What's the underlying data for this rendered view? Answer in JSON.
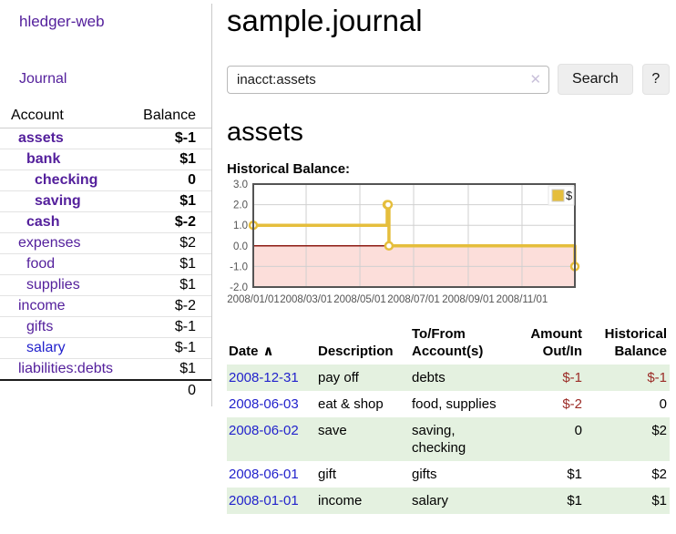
{
  "app": {
    "title": "hledger-web"
  },
  "sidebar": {
    "nav": {
      "journal": "Journal"
    },
    "accounts_table": {
      "headers": {
        "account": "Account",
        "balance": "Balance"
      },
      "rows": [
        {
          "name": "assets",
          "indent": 0,
          "bold": true,
          "balance": "$-1",
          "neg": "strong"
        },
        {
          "name": "bank",
          "indent": 1,
          "bold": true,
          "balance": "$1"
        },
        {
          "name": "checking",
          "indent": 2,
          "bold": true,
          "balance": "0"
        },
        {
          "name": "saving",
          "indent": 2,
          "bold": true,
          "balance": "$1"
        },
        {
          "name": "cash",
          "indent": 1,
          "bold": true,
          "balance": "$-2",
          "neg": "strong"
        },
        {
          "name": "expenses",
          "indent": 0,
          "bold": false,
          "balance": "$2"
        },
        {
          "name": "food",
          "indent": 1,
          "bold": false,
          "balance": "$1"
        },
        {
          "name": "supplies",
          "indent": 1,
          "bold": false,
          "balance": "$1"
        },
        {
          "name": "income",
          "indent": 0,
          "bold": false,
          "balance": "$-2",
          "neg": "light"
        },
        {
          "name": "gifts",
          "indent": 1,
          "bold": false,
          "balance": "$-1",
          "neg": "light"
        },
        {
          "name": "salary",
          "indent": 1,
          "bold": false,
          "balance": "$-1",
          "neg": "light",
          "link": "blue"
        },
        {
          "name": "liabilities:debts",
          "indent": 0,
          "bold": false,
          "balance": "$1"
        }
      ],
      "total": "0"
    }
  },
  "main": {
    "title": "sample.journal",
    "search": {
      "value": "inacct:assets",
      "clear_icon": "✕",
      "search_button": "Search",
      "help_button": "?"
    },
    "account_heading": "assets",
    "chart_label": "Historical Balance:"
  },
  "chart_data": {
    "type": "line",
    "step": true,
    "title": "Historical Balance",
    "grid": true,
    "legend_position": "top-right",
    "series": [
      {
        "name": "$",
        "color": "#e5be3c",
        "points": [
          [
            "2008-01-01",
            1
          ],
          [
            "2008-06-01",
            2
          ],
          [
            "2008-06-02",
            2
          ],
          [
            "2008-06-03",
            0
          ],
          [
            "2008-12-31",
            -1
          ]
        ]
      }
    ],
    "xlim": [
      "2008-01-01",
      "2008-12-31"
    ],
    "ylim": [
      -2,
      3
    ],
    "yticks": [
      3,
      2,
      1,
      0,
      -1,
      -2
    ],
    "xticks": [
      {
        "label": "2008/01/01",
        "date": "2008-01-01"
      },
      {
        "label": "2008/03/01",
        "date": "2008-03-01"
      },
      {
        "label": "2008/05/01",
        "date": "2008-05-01"
      },
      {
        "label": "2008/07/01",
        "date": "2008-07-01"
      },
      {
        "label": "2008/09/01",
        "date": "2008-09-01"
      },
      {
        "label": "2008/11/01",
        "date": "2008-11-01"
      }
    ],
    "negative_region_color": "#fcdeda",
    "zero_line_color": "#8c1a12",
    "border_color": "#545454",
    "gridline_color": "#d0d0d0"
  },
  "register": {
    "headers": {
      "date": "Date",
      "sort_icon": "∧",
      "description": "Description",
      "accounts": "To/From Account(s)",
      "amount": "Amount Out/In",
      "balance": "Historical Balance"
    },
    "rows": [
      {
        "date": "2008-12-31",
        "description": "pay off",
        "accounts": "debts",
        "amount": "$-1",
        "amount_negative": true,
        "balance": "$-1",
        "balance_negative": true
      },
      {
        "date": "2008-06-03",
        "description": "eat & shop",
        "accounts": "food, supplies",
        "amount": "$-2",
        "amount_negative": true,
        "balance": "0",
        "balance_negative": false
      },
      {
        "date": "2008-06-02",
        "description": "save",
        "accounts": "saving,\nchecking",
        "amount": "0",
        "amount_negative": false,
        "balance": "$2",
        "balance_negative": false
      },
      {
        "date": "2008-06-01",
        "description": "gift",
        "accounts": "gifts",
        "amount": "$1",
        "amount_negative": false,
        "balance": "$2",
        "balance_negative": false
      },
      {
        "date": "2008-01-01",
        "description": "income",
        "accounts": "salary",
        "amount": "$1",
        "amount_negative": false,
        "balance": "$1",
        "balance_negative": false
      }
    ]
  },
  "colors": {
    "link_purple": "#54209c",
    "link_blue": "#2222cc",
    "negative_strong": "#9b1b30",
    "negative_light": "#c17d7d",
    "stripe_green": "#e4f1e0",
    "series_gold": "#e5be3c"
  }
}
